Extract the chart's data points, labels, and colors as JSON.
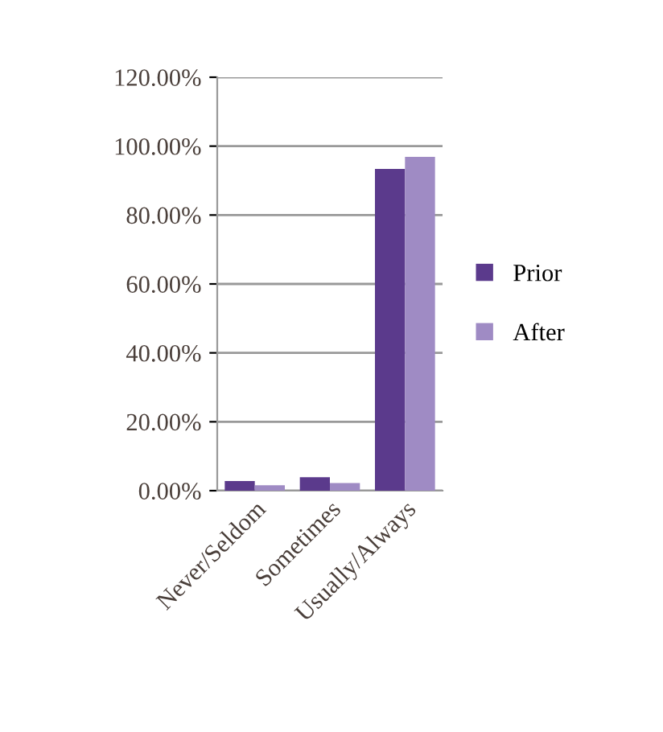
{
  "chart_data": {
    "type": "bar",
    "categories": [
      "Never/Seldom",
      "Sometimes",
      "Usually/Always"
    ],
    "series": [
      {
        "name": "Prior",
        "color": "#5b3a8c",
        "values": [
          2.8,
          3.9,
          93.4
        ]
      },
      {
        "name": "After",
        "color": "#9f8bc4",
        "values": [
          1.6,
          2.2,
          96.9
        ]
      }
    ],
    "ylim": [
      0,
      120
    ],
    "yticks": [
      {
        "value": 0,
        "label": "0.00%"
      },
      {
        "value": 20,
        "label": "20.00%"
      },
      {
        "value": 40,
        "label": "40.00%"
      },
      {
        "value": 60,
        "label": "60.00%"
      },
      {
        "value": 80,
        "label": "80.00%"
      },
      {
        "value": 100,
        "label": "100.00%"
      },
      {
        "value": 120,
        "label": "120.00%"
      }
    ],
    "grid": "y",
    "legend": "right"
  }
}
